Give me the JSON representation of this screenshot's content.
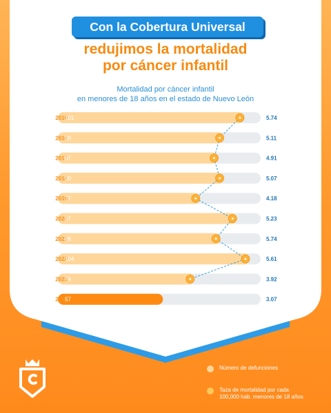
{
  "header": {
    "headline": "Con la Cobertura Universal",
    "subheadline_line1": "redujimos la mortalidad",
    "subheadline_line2": "por cáncer infantil"
  },
  "chart_title": {
    "line1": "Mortalidad por cáncer infantil",
    "line2": "en menores de 18 años en el estado de Nuevo León"
  },
  "chart_data": {
    "type": "bar",
    "orientation": "horizontal",
    "categories": [
      "2015",
      "2016",
      "2017",
      "2018",
      "2019",
      "2020",
      "2021",
      "2022",
      "2023",
      "2024"
    ],
    "series": [
      {
        "name": "Número de defunciones",
        "values": [
          101,
          90,
          87,
          90,
          77,
          97,
          88,
          104,
          74,
          57
        ]
      },
      {
        "name": "Taza de mortalidad por cada 100,000 hab. menores de 18 años",
        "values": [
          5.74,
          5.11,
          4.91,
          5.07,
          4.18,
          5.23,
          5.74,
          5.61,
          3.92,
          3.07
        ]
      }
    ],
    "xlim": [
      0,
      110
    ],
    "highlight_category": "2024"
  },
  "legend": {
    "item1": "Número de defunciones",
    "item2_line1": "Taza de mortalidad por cada",
    "item2_line2": "100,000 hab. menores de 18 años"
  },
  "colors": {
    "bar": "#ffd69a",
    "bar_highlight": "#ff8a12",
    "track": "#e9ecef",
    "marker": "#fbb13a",
    "accent_blue": "#1f8fe0",
    "accent_orange": "#f58a10"
  },
  "icons": {
    "logo": "shield-crown-logo-icon"
  }
}
